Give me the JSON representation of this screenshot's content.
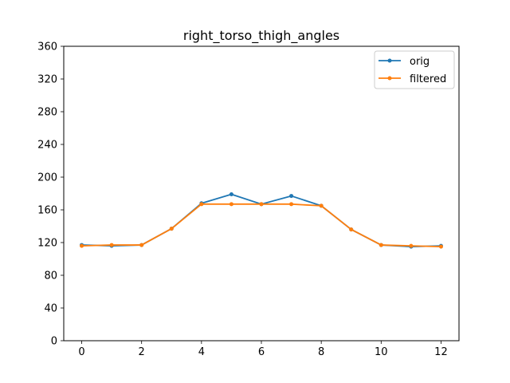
{
  "chart_data": {
    "type": "line",
    "title": "right_torso_thigh_angles",
    "xlabel": "",
    "ylabel": "",
    "xlim": [
      -0.6,
      12.6
    ],
    "ylim": [
      0,
      360
    ],
    "x_ticks": [
      0,
      2,
      4,
      6,
      8,
      10,
      12
    ],
    "y_ticks": [
      0,
      40,
      80,
      120,
      160,
      200,
      240,
      280,
      320,
      360
    ],
    "grid": false,
    "legend_position": "upper right",
    "x": [
      0,
      1,
      2,
      3,
      4,
      5,
      6,
      7,
      8,
      9,
      10,
      11,
      12
    ],
    "series": [
      {
        "name": "orig",
        "color": "#1f77b4",
        "values": [
          117,
          116,
          117,
          137,
          168,
          179,
          167,
          177,
          165,
          136,
          117,
          115,
          116
        ]
      },
      {
        "name": "filtered",
        "color": "#ff7f0e",
        "values": [
          116,
          117,
          117,
          137,
          167,
          167,
          167,
          167,
          165,
          136,
          117,
          116,
          115
        ]
      }
    ]
  }
}
